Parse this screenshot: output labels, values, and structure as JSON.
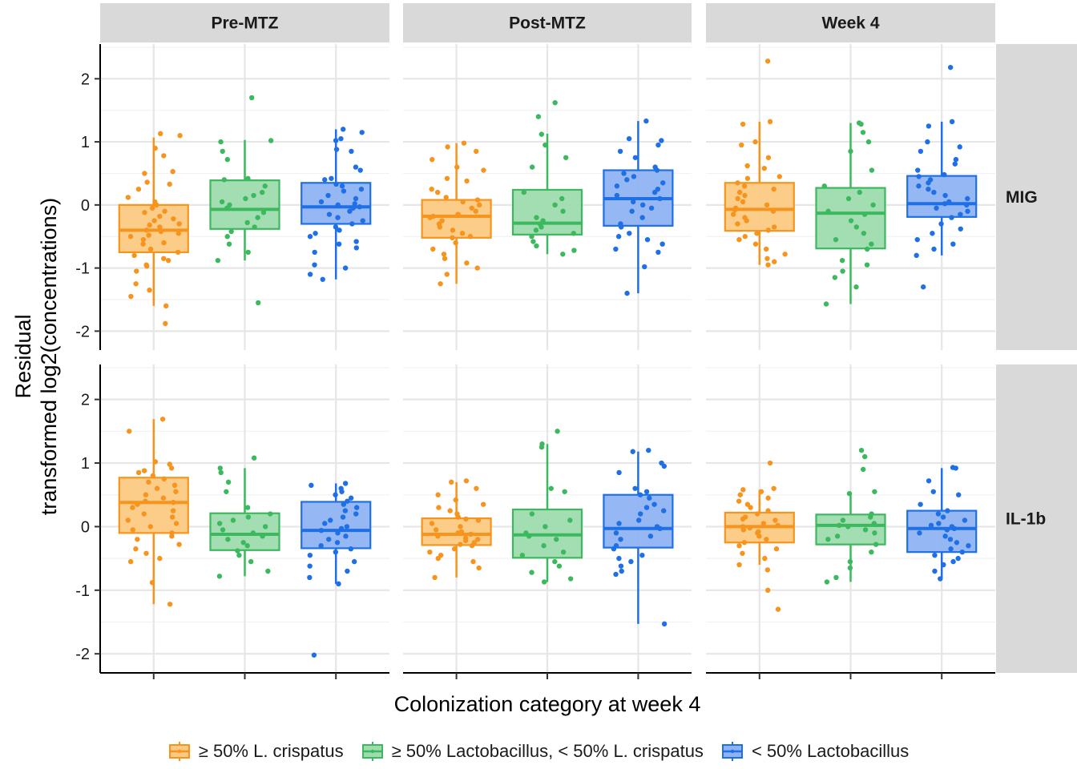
{
  "chart_data": {
    "type": "box",
    "xlabel": "Colonization category at week 4",
    "ylabel": [
      "Residual",
      "transformed log2(concentrations)"
    ],
    "ylim": [
      -2.3,
      2.55
    ],
    "yticks": [
      -2,
      -1,
      0,
      1,
      2
    ],
    "ytick_labels": [
      "-2",
      "-1",
      "0",
      "1",
      "2"
    ],
    "grid": true,
    "legend_position": "bottom",
    "columns": [
      "Pre-MTZ",
      "Post-MTZ",
      "Week 4"
    ],
    "rows": [
      "MIG",
      "IL-1b"
    ],
    "categories": [
      "≥ 50% L. crispatus",
      "≥ 50% Lactobacillus, < 50% L. crispatus",
      "< 50% Lactobacillus"
    ],
    "colors": [
      "#F7941D",
      "#3CB95E",
      "#1F6FE5"
    ],
    "fill_colors": [
      "#FCC983",
      "#9EDCAE",
      "#8FB3F2"
    ],
    "panels": [
      {
        "row": "MIG",
        "column": "Pre-MTZ",
        "boxes": [
          {
            "category": "≥ 50% L. crispatus",
            "whisker_low": -1.6,
            "q1": -0.75,
            "median": -0.4,
            "q3": 0.0,
            "whisker_high": 1.07,
            "outliers": [
              -1.88
            ],
            "points": [
              1.13,
              1.1,
              0.9,
              0.78,
              0.53,
              0.5,
              0.36,
              0.33,
              0.25,
              0.12,
              0.05,
              0.0,
              -0.05,
              -0.1,
              -0.12,
              -0.18,
              -0.22,
              -0.25,
              -0.3,
              -0.32,
              -0.35,
              -0.4,
              -0.42,
              -0.45,
              -0.48,
              -0.5,
              -0.55,
              -0.6,
              -0.62,
              -0.7,
              -0.75,
              -0.8,
              -0.85,
              -0.88,
              -0.95,
              -0.97,
              -1.05,
              -1.25,
              -1.35,
              -1.45,
              -1.6,
              -1.88
            ]
          },
          {
            "category": "≥ 50% Lactobacillus, < 50% L. crispatus",
            "whisker_low": -0.88,
            "q1": -0.38,
            "median": -0.07,
            "q3": 0.39,
            "whisker_high": 1.03,
            "outliers": [
              1.7,
              -1.55
            ],
            "points": [
              1.7,
              1.02,
              1.0,
              0.85,
              0.72,
              0.42,
              0.4,
              0.3,
              0.2,
              0.15,
              0.1,
              0.05,
              0.0,
              -0.05,
              -0.12,
              -0.2,
              -0.28,
              -0.35,
              -0.42,
              -0.5,
              -0.62,
              -0.75,
              -0.88,
              -1.55
            ]
          },
          {
            "category": "< 50% Lactobacillus",
            "whisker_low": -1.18,
            "q1": -0.3,
            "median": -0.03,
            "q3": 0.35,
            "whisker_high": 1.2,
            "outliers": [],
            "points": [
              1.2,
              1.15,
              1.05,
              1.02,
              0.88,
              0.85,
              0.6,
              0.55,
              0.42,
              0.4,
              0.33,
              0.3,
              0.25,
              0.22,
              0.15,
              0.1,
              0.05,
              0.02,
              0.0,
              -0.03,
              -0.05,
              -0.1,
              -0.15,
              -0.2,
              -0.25,
              -0.3,
              -0.35,
              -0.4,
              -0.45,
              -0.5,
              -0.58,
              -0.62,
              -0.68,
              -0.75,
              -0.95,
              -1.0,
              -1.1,
              -1.18
            ]
          }
        ]
      },
      {
        "row": "MIG",
        "column": "Post-MTZ",
        "boxes": [
          {
            "category": "≥ 50% L. crispatus",
            "whisker_low": -1.25,
            "q1": -0.52,
            "median": -0.18,
            "q3": 0.08,
            "whisker_high": 0.98,
            "outliers": [],
            "points": [
              0.98,
              0.92,
              0.85,
              0.72,
              0.6,
              0.55,
              0.42,
              0.38,
              0.25,
              0.2,
              0.12,
              0.08,
              0.05,
              0.0,
              -0.05,
              -0.1,
              -0.15,
              -0.18,
              -0.2,
              -0.25,
              -0.3,
              -0.35,
              -0.4,
              -0.45,
              -0.5,
              -0.52,
              -0.6,
              -0.7,
              -0.78,
              -0.85,
              -0.92,
              -1.0,
              -1.1,
              -1.25
            ]
          },
          {
            "category": "≥ 50% Lactobacillus, < 50% L. crispatus",
            "whisker_low": -0.78,
            "q1": -0.47,
            "median": -0.29,
            "q3": 0.24,
            "whisker_high": 1.13,
            "outliers": [
              1.62,
              1.4
            ],
            "points": [
              1.62,
              1.4,
              1.12,
              0.95,
              0.75,
              0.6,
              0.2,
              0.1,
              0.0,
              -0.1,
              -0.2,
              -0.25,
              -0.3,
              -0.35,
              -0.4,
              -0.45,
              -0.5,
              -0.58,
              -0.65,
              -0.72,
              -0.78
            ]
          },
          {
            "category": "< 50% Lactobacillus",
            "whisker_low": -1.4,
            "q1": -0.33,
            "median": 0.1,
            "q3": 0.55,
            "whisker_high": 1.33,
            "outliers": [],
            "points": [
              1.33,
              1.05,
              1.02,
              0.95,
              0.85,
              0.75,
              0.6,
              0.55,
              0.5,
              0.45,
              0.4,
              0.35,
              0.3,
              0.25,
              0.2,
              0.15,
              0.1,
              0.05,
              0.0,
              -0.05,
              -0.1,
              -0.2,
              -0.3,
              -0.35,
              -0.45,
              -0.5,
              -0.55,
              -0.62,
              -0.7,
              -0.75,
              -0.98,
              -1.4
            ]
          }
        ]
      },
      {
        "row": "MIG",
        "column": "Week 4",
        "boxes": [
          {
            "category": "≥ 50% L. crispatus",
            "whisker_low": -0.95,
            "q1": -0.41,
            "median": -0.07,
            "q3": 0.35,
            "whisker_high": 1.32,
            "outliers": [
              2.28
            ],
            "points": [
              2.28,
              1.32,
              1.28,
              1.0,
              0.95,
              0.75,
              0.62,
              0.58,
              0.45,
              0.42,
              0.35,
              0.3,
              0.25,
              0.2,
              0.15,
              0.1,
              0.05,
              0.0,
              -0.05,
              -0.08,
              -0.1,
              -0.15,
              -0.2,
              -0.25,
              -0.3,
              -0.35,
              -0.4,
              -0.45,
              -0.5,
              -0.55,
              -0.62,
              -0.7,
              -0.78,
              -0.85,
              -0.9,
              -0.95
            ]
          },
          {
            "category": "≥ 50% Lactobacillus, < 50% L. crispatus",
            "whisker_low": -1.57,
            "q1": -0.69,
            "median": -0.13,
            "q3": 0.27,
            "whisker_high": 1.3,
            "outliers": [],
            "points": [
              1.3,
              1.28,
              1.15,
              1.0,
              0.85,
              0.55,
              0.3,
              0.2,
              0.1,
              0.0,
              -0.1,
              -0.15,
              -0.25,
              -0.35,
              -0.45,
              -0.55,
              -0.62,
              -0.7,
              -0.88,
              -0.95,
              -1.05,
              -1.15,
              -1.3,
              -1.57
            ]
          },
          {
            "category": "< 50% Lactobacillus",
            "whisker_low": -0.8,
            "q1": -0.19,
            "median": 0.02,
            "q3": 0.46,
            "whisker_high": 1.32,
            "outliers": [
              2.18,
              -1.3
            ],
            "points": [
              2.18,
              1.32,
              1.25,
              1.0,
              0.92,
              0.85,
              0.72,
              0.65,
              0.55,
              0.48,
              0.45,
              0.4,
              0.35,
              0.3,
              0.25,
              0.2,
              0.15,
              0.1,
              0.05,
              0.02,
              0.0,
              -0.05,
              -0.1,
              -0.15,
              -0.2,
              -0.3,
              -0.38,
              -0.45,
              -0.55,
              -0.62,
              -0.7,
              -0.8,
              -1.3
            ]
          }
        ]
      },
      {
        "row": "IL-1b",
        "column": "Pre-MTZ",
        "boxes": [
          {
            "category": "≥ 50% L. crispatus",
            "whisker_low": -1.22,
            "q1": -0.1,
            "median": 0.38,
            "q3": 0.77,
            "whisker_high": 1.69,
            "outliers": [],
            "points": [
              1.69,
              1.5,
              1.02,
              0.98,
              0.92,
              0.88,
              0.85,
              0.8,
              0.75,
              0.7,
              0.65,
              0.6,
              0.55,
              0.5,
              0.45,
              0.4,
              0.38,
              0.35,
              0.3,
              0.25,
              0.2,
              0.15,
              0.1,
              0.05,
              0.0,
              -0.05,
              -0.1,
              -0.15,
              -0.2,
              -0.28,
              -0.35,
              -0.42,
              -0.5,
              -0.55,
              -0.88,
              -1.22
            ]
          },
          {
            "category": "≥ 50% Lactobacillus, < 50% L. crispatus",
            "whisker_low": -0.78,
            "q1": -0.37,
            "median": -0.12,
            "q3": 0.21,
            "whisker_high": 0.92,
            "outliers": [
              1.08
            ],
            "points": [
              1.08,
              0.92,
              0.85,
              0.7,
              0.55,
              0.3,
              0.2,
              0.15,
              0.1,
              0.05,
              0.0,
              -0.05,
              -0.1,
              -0.15,
              -0.2,
              -0.25,
              -0.3,
              -0.38,
              -0.45,
              -0.55,
              -0.7,
              -0.78
            ]
          },
          {
            "category": "< 50% Lactobacillus",
            "whisker_low": -0.9,
            "q1": -0.34,
            "median": -0.06,
            "q3": 0.39,
            "whisker_high": 0.68,
            "outliers": [
              -2.02
            ],
            "points": [
              0.68,
              0.65,
              0.6,
              0.55,
              0.5,
              0.45,
              0.4,
              0.35,
              0.3,
              0.25,
              0.2,
              0.15,
              0.1,
              0.05,
              0.0,
              -0.03,
              -0.06,
              -0.1,
              -0.15,
              -0.2,
              -0.25,
              -0.3,
              -0.35,
              -0.4,
              -0.45,
              -0.55,
              -0.62,
              -0.7,
              -0.8,
              -0.9,
              -2.02
            ]
          }
        ]
      },
      {
        "row": "IL-1b",
        "column": "Post-MTZ",
        "boxes": [
          {
            "category": "≥ 50% L. crispatus",
            "whisker_low": -0.8,
            "q1": -0.29,
            "median": -0.12,
            "q3": 0.13,
            "whisker_high": 0.7,
            "outliers": [],
            "points": [
              0.72,
              0.7,
              0.6,
              0.5,
              0.42,
              0.35,
              0.3,
              0.25,
              0.2,
              0.15,
              0.12,
              0.1,
              0.05,
              0.0,
              -0.05,
              -0.08,
              -0.1,
              -0.12,
              -0.15,
              -0.18,
              -0.2,
              -0.22,
              -0.25,
              -0.28,
              -0.3,
              -0.35,
              -0.4,
              -0.45,
              -0.5,
              -0.55,
              -0.65,
              -0.8
            ]
          },
          {
            "category": "≥ 50% Lactobacillus, < 50% L. crispatus",
            "whisker_low": -0.87,
            "q1": -0.49,
            "median": -0.13,
            "q3": 0.27,
            "whisker_high": 1.3,
            "outliers": [
              1.5
            ],
            "points": [
              1.5,
              1.3,
              1.25,
              0.6,
              0.55,
              0.2,
              0.1,
              0.0,
              -0.1,
              -0.15,
              -0.2,
              -0.3,
              -0.4,
              -0.45,
              -0.55,
              -0.62,
              -0.72,
              -0.82,
              -0.87
            ]
          },
          {
            "category": "< 50% Lactobacillus",
            "whisker_low": -1.53,
            "q1": -0.33,
            "median": -0.03,
            "q3": 0.5,
            "whisker_high": 1.18,
            "outliers": [],
            "points": [
              1.2,
              1.18,
              1.0,
              0.95,
              0.85,
              0.6,
              0.55,
              0.5,
              0.45,
              0.35,
              0.3,
              0.25,
              0.2,
              0.1,
              0.05,
              0.0,
              -0.03,
              -0.1,
              -0.15,
              -0.2,
              -0.3,
              -0.35,
              -0.45,
              -0.5,
              -0.55,
              -0.62,
              -0.7,
              -0.75,
              -1.53
            ]
          }
        ]
      },
      {
        "row": "IL-1b",
        "column": "Week 4",
        "boxes": [
          {
            "category": "≥ 50% L. crispatus",
            "whisker_low": -0.6,
            "q1": -0.25,
            "median": 0.0,
            "q3": 0.22,
            "whisker_high": 0.58,
            "outliers": [
              1.0,
              -1.0,
              -1.3
            ],
            "points": [
              1.0,
              0.6,
              0.58,
              0.55,
              0.5,
              0.45,
              0.4,
              0.35,
              0.3,
              0.25,
              0.2,
              0.15,
              0.12,
              0.1,
              0.05,
              0.02,
              0.0,
              -0.02,
              -0.05,
              -0.08,
              -0.1,
              -0.15,
              -0.2,
              -0.25,
              -0.3,
              -0.35,
              -0.42,
              -0.5,
              -0.6,
              -0.68,
              -1.0,
              -1.3
            ]
          },
          {
            "category": "≥ 50% Lactobacillus, < 50% L. crispatus",
            "whisker_low": -0.87,
            "q1": -0.28,
            "median": 0.02,
            "q3": 0.19,
            "whisker_high": 0.52,
            "outliers": [
              1.2,
              1.1,
              0.9
            ],
            "points": [
              1.2,
              1.1,
              0.9,
              0.55,
              0.52,
              0.2,
              0.15,
              0.1,
              0.05,
              0.02,
              0.0,
              -0.05,
              -0.1,
              -0.15,
              -0.2,
              -0.28,
              -0.4,
              -0.55,
              -0.65,
              -0.8,
              -0.87
            ]
          },
          {
            "category": "< 50% Lactobacillus",
            "whisker_low": -0.82,
            "q1": -0.4,
            "median": -0.03,
            "q3": 0.25,
            "whisker_high": 0.92,
            "outliers": [],
            "points": [
              0.93,
              0.92,
              0.72,
              0.55,
              0.5,
              0.35,
              0.25,
              0.2,
              0.15,
              0.1,
              0.05,
              0.02,
              0.0,
              -0.03,
              -0.05,
              -0.1,
              -0.15,
              -0.2,
              -0.25,
              -0.3,
              -0.35,
              -0.4,
              -0.45,
              -0.5,
              -0.55,
              -0.6,
              -0.7,
              -0.82
            ]
          }
        ]
      }
    ]
  }
}
